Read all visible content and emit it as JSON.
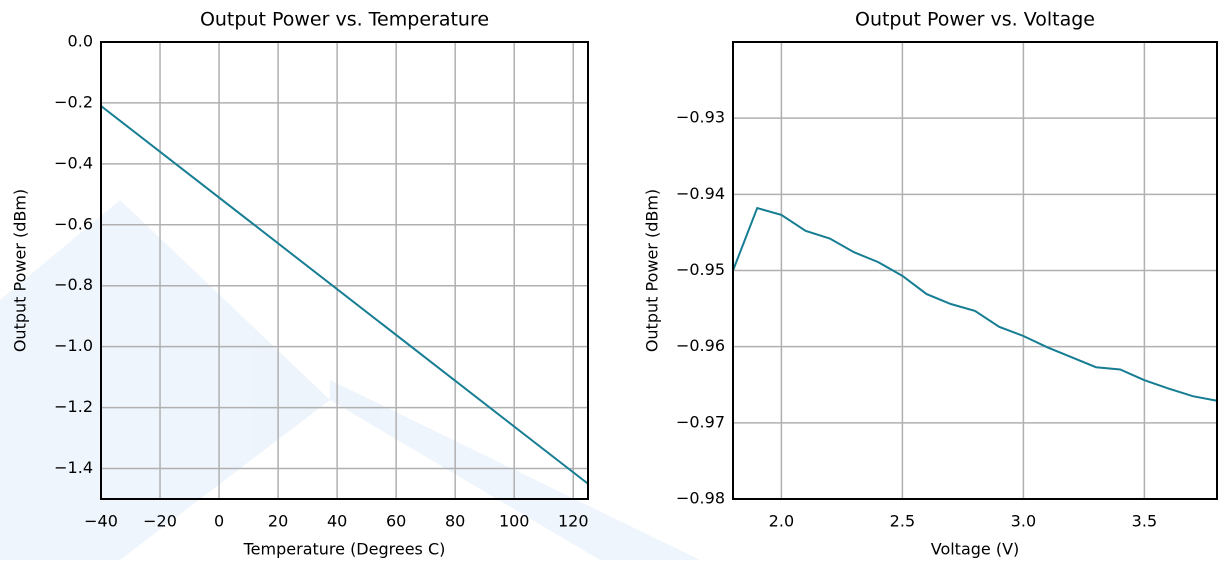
{
  "chart_data": [
    {
      "type": "line",
      "title": "Output Power vs. Temperature",
      "xlabel": "Temperature (Degrees C)",
      "ylabel": "Output Power (dBm)",
      "x": [
        -40,
        125
      ],
      "values": [
        -0.21,
        -1.45
      ],
      "color": "#167d93",
      "xlim": [
        -40,
        125
      ],
      "xticks": [
        {
          "value": -40,
          "label": "−40"
        },
        {
          "value": -20,
          "label": "−20"
        },
        0,
        20,
        40,
        60,
        80,
        100,
        120
      ],
      "ylim": [
        -1.5,
        0
      ],
      "yticks": [
        {
          "value": 0,
          "label": "0.0"
        },
        {
          "value": -0.2,
          "label": "−0.2"
        },
        {
          "value": -0.4,
          "label": "−0.4"
        },
        {
          "value": -0.6,
          "label": "−0.6"
        },
        {
          "value": -0.8,
          "label": "−0.8"
        },
        {
          "value": -1.0,
          "label": "−1.0"
        },
        {
          "value": -1.2,
          "label": "−1.2"
        },
        {
          "value": -1.4,
          "label": "−1.4"
        }
      ],
      "grid": true
    },
    {
      "type": "line",
      "title": "Output Power vs. Voltage",
      "xlabel": "Voltage (V)",
      "ylabel": "Output Power (dBm)",
      "x": [
        1.8,
        1.9,
        2.0,
        2.1,
        2.2,
        2.3,
        2.4,
        2.5,
        2.6,
        2.7,
        2.8,
        2.9,
        3.0,
        3.1,
        3.2,
        3.3,
        3.4,
        3.5,
        3.6,
        3.7,
        3.8
      ],
      "values": [
        -0.95,
        -0.9418,
        -0.9427,
        -0.9448,
        -0.9458,
        -0.9476,
        -0.9489,
        -0.9507,
        -0.9531,
        -0.9544,
        -0.9553,
        -0.9574,
        -0.9586,
        -0.9601,
        -0.9614,
        -0.9627,
        -0.963,
        -0.9644,
        -0.9655,
        -0.9665,
        -0.9671
      ],
      "color": "#167d93",
      "xlim": [
        1.8,
        3.8
      ],
      "xticks": [
        {
          "value": 2.0,
          "label": "2.0"
        },
        {
          "value": 2.5,
          "label": "2.5"
        },
        {
          "value": 3.0,
          "label": "3.0"
        },
        {
          "value": 3.5,
          "label": "3.5"
        }
      ],
      "ylim": [
        -0.98,
        -0.92
      ],
      "yticks": [
        {
          "value": -0.93,
          "label": "−0.93"
        },
        {
          "value": -0.94,
          "label": "−0.94"
        },
        {
          "value": -0.95,
          "label": "−0.95"
        },
        {
          "value": -0.96,
          "label": "−0.96"
        },
        {
          "value": -0.97,
          "label": "−0.97"
        },
        {
          "value": -0.98,
          "label": "−0.98"
        }
      ],
      "grid": true
    }
  ]
}
